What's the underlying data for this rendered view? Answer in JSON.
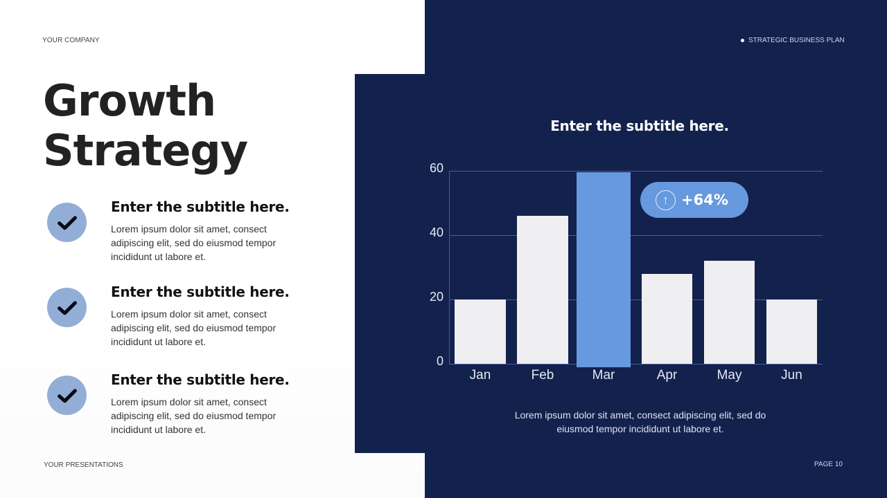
{
  "header": {
    "company": "YOUR COMPANY",
    "tagline": "STRATEGIC BUSINESS PLAN"
  },
  "footer": {
    "presentations": "YOUR PRESENTATIONS",
    "page": "PAGE 10"
  },
  "title": {
    "line1": "Growth",
    "line2": "Strategy"
  },
  "features": [
    {
      "icon": "check-icon",
      "title": "Enter the subtitle here.",
      "body": "Lorem ipsum dolor sit amet, consect adipiscing elit, sed do eiusmod tempor incididunt ut labore et."
    },
    {
      "icon": "check-icon",
      "title": "Enter the subtitle here.",
      "body": "Lorem ipsum dolor sit amet, consect adipiscing elit, sed do eiusmod tempor incididunt ut labore et."
    },
    {
      "icon": "check-icon",
      "title": "Enter the subtitle here.",
      "body": "Lorem ipsum dolor sit amet, consect adipiscing elit, sed do eiusmod tempor incididunt ut labore et."
    }
  ],
  "chart_panel": {
    "subtitle": "Enter the subtitle here.",
    "badge": {
      "icon": "arrow-up-icon",
      "arrow": "↑",
      "value": "+64%"
    },
    "caption": "Lorem ipsum dolor sit amet, consect adipiscing elit, sed do eiusmod tempor incididunt ut labore et."
  },
  "colors": {
    "navy": "#13214d",
    "accent_blue": "#6699dd",
    "check_circle": "#92aed6",
    "bar_default": "#efeef0",
    "title_text": "#222222"
  },
  "chart_data": {
    "type": "bar",
    "title": "Enter the subtitle here.",
    "categories": [
      "Jan",
      "Feb",
      "Mar",
      "Apr",
      "May",
      "Jun"
    ],
    "values": [
      20,
      46,
      60,
      28,
      32,
      20
    ],
    "highlight": "Mar",
    "yticks": [
      0,
      20,
      40,
      60
    ],
    "ylim": [
      0,
      60
    ],
    "xlabel": "",
    "ylabel": "",
    "grid": true,
    "legend": null,
    "annotations": [
      {
        "text": "+64%",
        "near": "Mar",
        "icon": "arrow-up"
      }
    ]
  }
}
